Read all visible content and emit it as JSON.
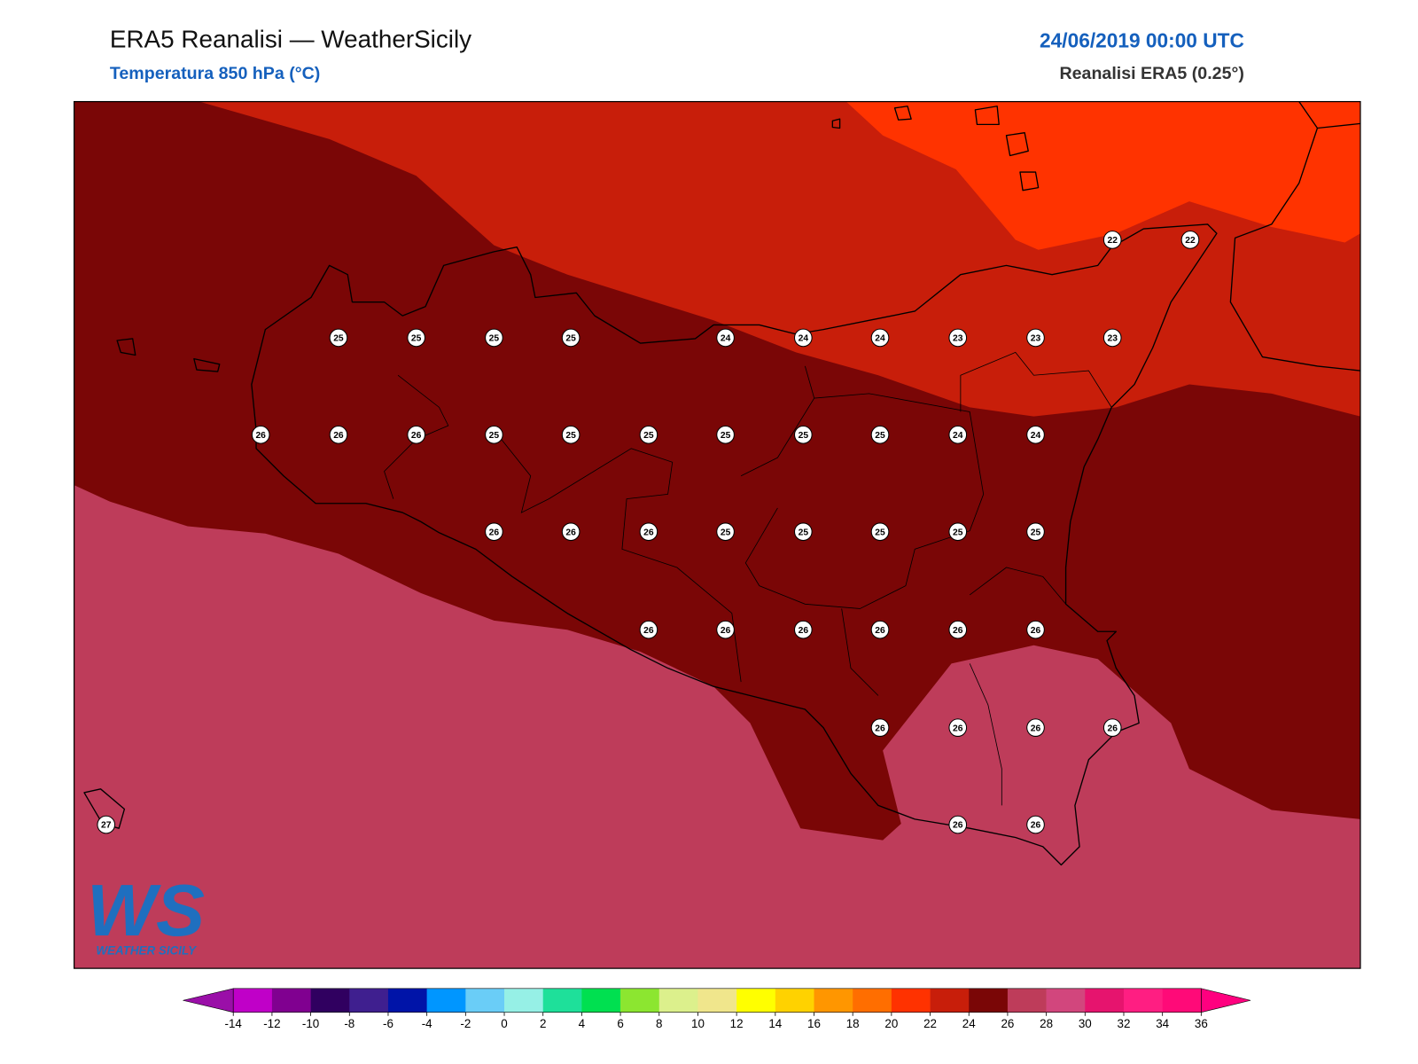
{
  "header": {
    "title": "ERA5 Reanalisi — WeatherSicily",
    "subtitle": "Temperatura 850 hPa (°C)",
    "datetime": "24/06/2019 00:00 UTC",
    "source": "Reanalisi ERA5 (0.25°)"
  },
  "stations": [
    22,
    22,
    25,
    25,
    25,
    25,
    24,
    24,
    24,
    23,
    23,
    23,
    26,
    26,
    26,
    25,
    25,
    25,
    25,
    25,
    25,
    24,
    24,
    26,
    26,
    26,
    25,
    25,
    25,
    25,
    25,
    26,
    26,
    26,
    26,
    26,
    26,
    26,
    26,
    26,
    26,
    27,
    26,
    26
  ],
  "logo": {
    "mark": "WS",
    "name": "WEATHER SICILY"
  },
  "colorbar": {
    "ticks": [
      -14,
      -12,
      -10,
      -8,
      -6,
      -4,
      -2,
      0,
      2,
      4,
      6,
      8,
      10,
      12,
      14,
      16,
      18,
      20,
      22,
      24,
      26,
      28,
      30,
      32,
      34,
      36
    ],
    "colors": [
      "#c000c8",
      "#800090",
      "#300060",
      "#3f1f8f",
      "#0014a8",
      "#0096ff",
      "#6acdf7",
      "#96f0e6",
      "#1ee09a",
      "#00e050",
      "#8ce630",
      "#dcf08c",
      "#f0e68c",
      "#ffff00",
      "#ffd200",
      "#ff9600",
      "#ff6e00",
      "#ff3200",
      "#c81e0a",
      "#7a0606",
      "#be3c5a",
      "#d2467d",
      "#e6146e",
      "#ff1e82",
      "#ff0a78"
    ],
    "under_color": "#9a0fa8",
    "over_color": "#ff007f"
  }
}
